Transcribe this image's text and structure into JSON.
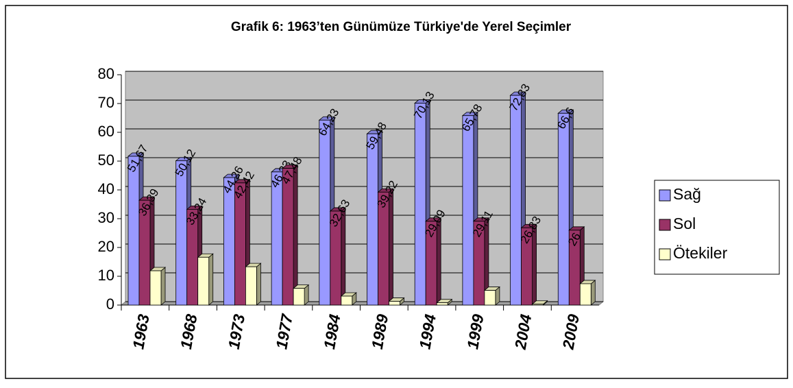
{
  "chart_data": {
    "type": "bar3d",
    "title": "Grafik 6: 1963’ten Günümüze Türkiye'de Yerel Seçimler",
    "categories": [
      "1963",
      "1968",
      "1973",
      "1977",
      "1984",
      "1989",
      "1994",
      "1999",
      "2004",
      "2009"
    ],
    "series": [
      {
        "name": "Sağ",
        "color": "#9999ff",
        "values": [
          51.67,
          50.12,
          44.26,
          46.23,
          64.23,
          59.48,
          70.13,
          65.78,
          72.83,
          66.6
        ],
        "value_labels": [
          "51,67",
          "50,12",
          "44,26",
          "46,23",
          "64,23",
          "59,48",
          "70,13",
          "65,78",
          "72,83",
          "66,6"
        ]
      },
      {
        "name": "Sol",
        "color": "#993366",
        "values": [
          36.39,
          33.24,
          42.42,
          47.48,
          32.63,
          39.22,
          29.09,
          29.11,
          26.83,
          26
        ],
        "value_labels": [
          "36,39",
          "33,24",
          "42,42",
          "47,48",
          "32,63",
          "39,22",
          "29,09",
          "29,11",
          "26,83",
          "26"
        ]
      },
      {
        "name": "Ötekiler",
        "color": "#ffffcc",
        "values": [
          11.9,
          16.6,
          13.3,
          5.8,
          3.1,
          1.3,
          0.8,
          5.1,
          0.3,
          7.4
        ]
      }
    ],
    "ylim": [
      0,
      80
    ],
    "yticks": [
      0,
      10,
      20,
      30,
      40,
      50,
      60,
      70,
      80
    ],
    "grid": true,
    "legend": "right"
  }
}
